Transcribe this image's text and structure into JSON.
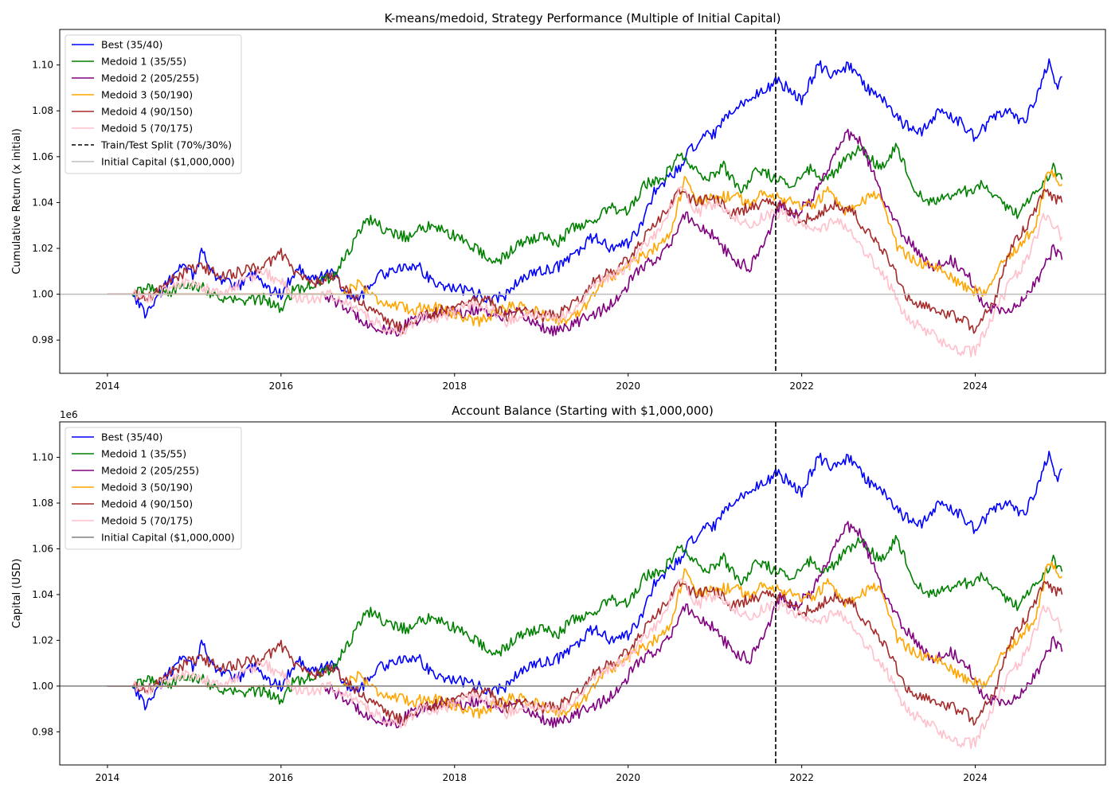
{
  "chart_data": [
    {
      "type": "line",
      "title": "K-means/medoid, Strategy Performance (Multiple of Initial Capital)",
      "xlabel": "",
      "ylabel": "Cumulative Return (x initial)",
      "offset_text": "",
      "xlim": [
        2013.45,
        2025.5
      ],
      "ylim": [
        0.9655,
        1.1155
      ],
      "x_ticks": [
        2014,
        2016,
        2018,
        2020,
        2022,
        2024
      ],
      "x_tick_labels": [
        "2014",
        "2016",
        "2018",
        "2020",
        "2022",
        "2024"
      ],
      "y_ticks": [
        0.98,
        1.0,
        1.02,
        1.04,
        1.06,
        1.08,
        1.1
      ],
      "y_tick_labels": [
        "0.98",
        "1.00",
        "1.02",
        "1.04",
        "1.06",
        "1.08",
        "1.10"
      ],
      "legend_position": "upper-left",
      "grid": false,
      "split": {
        "label": "Train/Test Split (70%/30%)",
        "x": 2021.7,
        "color": "#000000"
      },
      "baseline": {
        "label": "Initial Capital ($1,000,000)",
        "y": 1.0,
        "color": "#bdbdbd"
      },
      "series": [
        {
          "name": "Best (35/40)",
          "color": "#0000ff",
          "x": [
            2014.0,
            2014.3,
            2014.45,
            2014.55,
            2014.7,
            2014.85,
            2015.0,
            2015.1,
            2015.2,
            2015.35,
            2015.5,
            2015.7,
            2015.85,
            2016.0,
            2016.2,
            2016.4,
            2016.6,
            2016.75,
            2016.9,
            2017.1,
            2017.3,
            2017.55,
            2017.8,
            2018.0,
            2018.25,
            2018.45,
            2018.6,
            2018.8,
            2019.0,
            2019.2,
            2019.4,
            2019.6,
            2019.8,
            2020.0,
            2020.15,
            2020.3,
            2020.45,
            2020.6,
            2020.7,
            2020.85,
            2021.0,
            2021.2,
            2021.4,
            2021.6,
            2021.7,
            2021.85,
            2022.0,
            2022.2,
            2022.35,
            2022.55,
            2022.75,
            2022.95,
            2023.15,
            2023.35,
            2023.6,
            2023.85,
            2024.0,
            2024.15,
            2024.35,
            2024.55,
            2024.7,
            2024.85,
            2024.95,
            2025.0
          ],
          "y": [
            1.0,
            1.0,
            0.991,
            0.998,
            1.005,
            1.012,
            1.008,
            1.02,
            1.01,
            1.005,
            1.003,
            1.01,
            1.002,
            1.0,
            1.012,
            1.006,
            1.01,
            1.0,
            0.998,
            1.008,
            1.01,
            1.013,
            1.004,
            1.003,
            1.0,
            0.998,
            1.0,
            1.008,
            1.01,
            1.012,
            1.018,
            1.025,
            1.02,
            1.022,
            1.03,
            1.045,
            1.05,
            1.055,
            1.062,
            1.068,
            1.07,
            1.08,
            1.085,
            1.09,
            1.093,
            1.09,
            1.085,
            1.1,
            1.095,
            1.1,
            1.09,
            1.085,
            1.075,
            1.07,
            1.08,
            1.075,
            1.068,
            1.075,
            1.08,
            1.075,
            1.085,
            1.102,
            1.09,
            1.095
          ]
        },
        {
          "name": "Medoid 1 (35/55)",
          "color": "#008000",
          "x": [
            2014.0,
            2014.3,
            2014.5,
            2014.7,
            2014.9,
            2015.1,
            2015.3,
            2015.55,
            2015.8,
            2016.0,
            2016.15,
            2016.35,
            2016.6,
            2016.8,
            2017.0,
            2017.2,
            2017.45,
            2017.7,
            2017.9,
            2018.1,
            2018.3,
            2018.5,
            2018.75,
            2019.0,
            2019.2,
            2019.4,
            2019.6,
            2019.8,
            2020.0,
            2020.2,
            2020.4,
            2020.6,
            2020.75,
            2020.9,
            2021.1,
            2021.3,
            2021.5,
            2021.7,
            2021.9,
            2022.1,
            2022.3,
            2022.5,
            2022.7,
            2022.9,
            2023.1,
            2023.3,
            2023.5,
            2023.7,
            2023.9,
            2024.1,
            2024.3,
            2024.5,
            2024.7,
            2024.9,
            2025.0
          ],
          "y": [
            1.0,
            1.0,
            1.003,
            1.0,
            1.005,
            1.003,
            0.998,
            0.997,
            0.998,
            0.994,
            1.002,
            1.004,
            1.008,
            1.02,
            1.033,
            1.028,
            1.025,
            1.03,
            1.027,
            1.024,
            1.018,
            1.014,
            1.022,
            1.025,
            1.023,
            1.03,
            1.032,
            1.038,
            1.036,
            1.048,
            1.05,
            1.062,
            1.055,
            1.05,
            1.056,
            1.045,
            1.055,
            1.05,
            1.048,
            1.055,
            1.05,
            1.058,
            1.064,
            1.055,
            1.065,
            1.045,
            1.04,
            1.042,
            1.045,
            1.048,
            1.04,
            1.035,
            1.045,
            1.055,
            1.05
          ]
        },
        {
          "name": "Medoid 2 (205/255)",
          "color": "#800080",
          "x": [
            2014.0,
            2016.5,
            2016.7,
            2016.9,
            2017.1,
            2017.3,
            2017.5,
            2017.7,
            2017.9,
            2018.1,
            2018.3,
            2018.5,
            2018.7,
            2018.9,
            2019.1,
            2019.3,
            2019.5,
            2019.7,
            2019.9,
            2020.1,
            2020.3,
            2020.5,
            2020.65,
            2020.8,
            2021.0,
            2021.2,
            2021.4,
            2021.6,
            2021.75,
            2021.9,
            2022.1,
            2022.3,
            2022.5,
            2022.65,
            2022.8,
            2022.95,
            2023.1,
            2023.3,
            2023.5,
            2023.7,
            2023.9,
            2024.1,
            2024.3,
            2024.5,
            2024.7,
            2024.9,
            2025.0
          ],
          "y": [
            1.0,
            1.0,
            0.995,
            0.99,
            0.985,
            0.983,
            0.988,
            0.99,
            0.993,
            0.992,
            0.994,
            0.99,
            0.992,
            0.988,
            0.984,
            0.985,
            0.99,
            0.993,
            0.998,
            1.01,
            1.015,
            1.022,
            1.035,
            1.03,
            1.025,
            1.015,
            1.012,
            1.025,
            1.04,
            1.035,
            1.04,
            1.055,
            1.07,
            1.068,
            1.055,
            1.04,
            1.03,
            1.02,
            1.012,
            1.015,
            1.01,
            0.995,
            0.993,
            0.995,
            1.005,
            1.02,
            1.015
          ]
        },
        {
          "name": "Medoid 3 (50/190)",
          "color": "#ffa500",
          "x": [
            2014.0,
            2016.7,
            2016.9,
            2017.1,
            2017.3,
            2017.5,
            2017.7,
            2017.9,
            2018.1,
            2018.3,
            2018.5,
            2018.7,
            2018.9,
            2019.1,
            2019.3,
            2019.5,
            2019.7,
            2019.9,
            2020.1,
            2020.3,
            2020.5,
            2020.65,
            2020.8,
            2021.0,
            2021.2,
            2021.4,
            2021.6,
            2021.75,
            2021.9,
            2022.1,
            2022.3,
            2022.5,
            2022.7,
            2022.9,
            2023.1,
            2023.3,
            2023.5,
            2023.7,
            2023.9,
            2024.1,
            2024.3,
            2024.5,
            2024.7,
            2024.85,
            2025.0
          ],
          "y": [
            1.0,
            1.0,
            1.005,
            0.998,
            0.995,
            0.993,
            0.995,
            0.993,
            0.99,
            0.988,
            0.993,
            0.995,
            0.993,
            0.99,
            0.988,
            0.995,
            1.005,
            1.01,
            1.015,
            1.02,
            1.028,
            1.05,
            1.04,
            1.042,
            1.043,
            1.04,
            1.045,
            1.042,
            1.04,
            1.038,
            1.045,
            1.035,
            1.04,
            1.045,
            1.02,
            1.015,
            1.012,
            1.008,
            1.003,
            1.0,
            1.015,
            1.02,
            1.03,
            1.055,
            1.048
          ]
        },
        {
          "name": "Medoid 4 (90/150)",
          "color": "#a52a2a",
          "x": [
            2014.0,
            2014.3,
            2014.5,
            2014.7,
            2014.9,
            2015.1,
            2015.3,
            2015.55,
            2015.8,
            2016.0,
            2016.2,
            2016.4,
            2016.6,
            2016.8,
            2017.0,
            2017.2,
            2017.4,
            2017.6,
            2017.8,
            2018.0,
            2018.2,
            2018.4,
            2018.6,
            2018.8,
            2019.0,
            2019.2,
            2019.4,
            2019.6,
            2019.8,
            2020.0,
            2020.2,
            2020.4,
            2020.6,
            2020.8,
            2021.0,
            2021.2,
            2021.4,
            2021.6,
            2021.8,
            2022.0,
            2022.2,
            2022.4,
            2022.6,
            2022.8,
            2023.0,
            2023.2,
            2023.4,
            2023.6,
            2023.8,
            2024.0,
            2024.2,
            2024.4,
            2024.6,
            2024.8,
            2025.0
          ],
          "y": [
            1.0,
            1.0,
            0.999,
            1.005,
            1.01,
            1.012,
            1.008,
            1.01,
            1.012,
            1.018,
            1.008,
            1.005,
            1.008,
            1.0,
            0.995,
            0.988,
            0.985,
            0.99,
            0.992,
            0.995,
            0.998,
            0.997,
            0.99,
            0.994,
            0.99,
            0.992,
            0.997,
            1.005,
            1.01,
            1.015,
            1.025,
            1.035,
            1.045,
            1.04,
            1.042,
            1.035,
            1.038,
            1.04,
            1.038,
            1.032,
            1.035,
            1.04,
            1.035,
            1.025,
            1.015,
            1.0,
            0.995,
            0.992,
            0.99,
            0.985,
            0.995,
            1.02,
            1.03,
            1.045,
            1.04
          ]
        },
        {
          "name": "Medoid 5 (70/175)",
          "color": "#ffc0cb",
          "x": [
            2014.0,
            2014.3,
            2014.5,
            2014.7,
            2014.9,
            2015.1,
            2015.3,
            2015.55,
            2015.8,
            2016.0,
            2016.2,
            2016.4,
            2016.6,
            2016.8,
            2017.0,
            2017.2,
            2017.4,
            2017.6,
            2017.8,
            2018.0,
            2018.2,
            2018.4,
            2018.6,
            2018.8,
            2019.0,
            2019.2,
            2019.4,
            2019.6,
            2019.8,
            2020.0,
            2020.2,
            2020.4,
            2020.6,
            2020.8,
            2021.0,
            2021.2,
            2021.4,
            2021.6,
            2021.8,
            2022.0,
            2022.2,
            2022.4,
            2022.6,
            2022.8,
            2023.0,
            2023.2,
            2023.4,
            2023.6,
            2023.8,
            2024.0,
            2024.2,
            2024.4,
            2024.6,
            2024.8,
            2025.0
          ],
          "y": [
            1.0,
            1.0,
            0.998,
            1.003,
            1.005,
            1.003,
            1.0,
            1.005,
            1.01,
            1.005,
            0.998,
            0.998,
            1.0,
            0.995,
            0.99,
            0.985,
            0.984,
            0.99,
            0.99,
            0.992,
            0.995,
            0.994,
            0.988,
            0.991,
            0.99,
            0.99,
            0.995,
            1.003,
            1.008,
            1.012,
            1.022,
            1.03,
            1.048,
            1.035,
            1.04,
            1.035,
            1.03,
            1.035,
            1.035,
            1.03,
            1.028,
            1.032,
            1.025,
            1.015,
            1.005,
            0.99,
            0.985,
            0.98,
            0.975,
            0.975,
            0.99,
            1.005,
            1.015,
            1.035,
            1.025
          ]
        }
      ]
    },
    {
      "type": "line",
      "title": "Account Balance (Starting with $1,000,000)",
      "xlabel": "",
      "ylabel": "Capital (USD)",
      "offset_text": "1e6",
      "xlim": [
        2013.45,
        2025.5
      ],
      "ylim": [
        0.9655,
        1.1155
      ],
      "x_ticks": [
        2014,
        2016,
        2018,
        2020,
        2022,
        2024
      ],
      "x_tick_labels": [
        "2014",
        "2016",
        "2018",
        "2020",
        "2022",
        "2024"
      ],
      "y_ticks": [
        0.98,
        1.0,
        1.02,
        1.04,
        1.06,
        1.08,
        1.1
      ],
      "y_tick_labels": [
        "0.98",
        "1.00",
        "1.02",
        "1.04",
        "1.06",
        "1.08",
        "1.10"
      ],
      "legend_position": "upper-left",
      "grid": false,
      "split": {
        "label": "",
        "x": 2021.7,
        "color": "#000000"
      },
      "baseline": {
        "label": "Initial Capital ($1,000,000)",
        "y": 1.0,
        "color": "#808080"
      },
      "series_ref": 0
    }
  ]
}
